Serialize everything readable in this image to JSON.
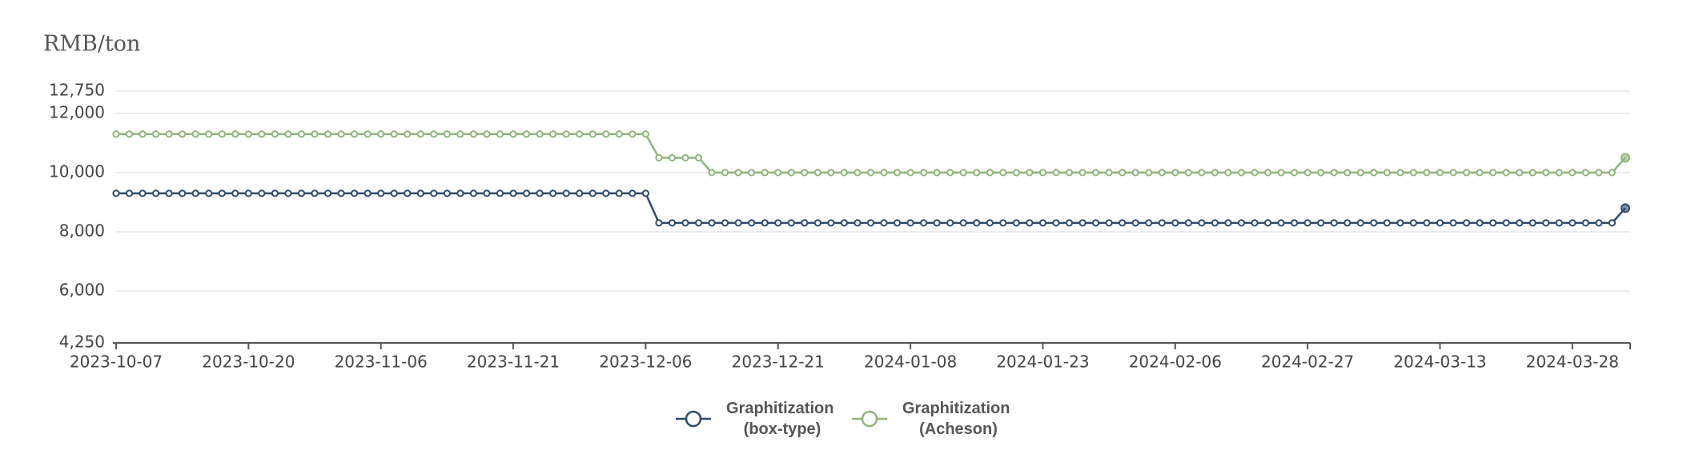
{
  "chart_data": {
    "type": "line",
    "y_axis_label": "RMB/ton",
    "categories": [
      "2023-10-07",
      null,
      null,
      null,
      null,
      null,
      null,
      null,
      null,
      null,
      "2023-10-20",
      null,
      null,
      null,
      null,
      null,
      null,
      null,
      null,
      null,
      "2023-11-06",
      null,
      null,
      null,
      null,
      null,
      null,
      null,
      null,
      null,
      "2023-11-21",
      null,
      null,
      null,
      null,
      null,
      null,
      null,
      null,
      null,
      "2023-12-06",
      null,
      null,
      null,
      null,
      null,
      null,
      null,
      null,
      null,
      "2023-12-21",
      null,
      null,
      null,
      null,
      null,
      null,
      null,
      null,
      null,
      "2024-01-08",
      null,
      null,
      null,
      null,
      null,
      null,
      null,
      null,
      null,
      "2024-01-23",
      null,
      null,
      null,
      null,
      null,
      null,
      null,
      null,
      null,
      "2024-02-06",
      null,
      null,
      null,
      null,
      null,
      null,
      null,
      null,
      null,
      "2024-02-27",
      null,
      null,
      null,
      null,
      null,
      null,
      null,
      null,
      null,
      "2024-03-13",
      null,
      null,
      null,
      null,
      null,
      null,
      null,
      null,
      null,
      "2024-03-28",
      null,
      null,
      null,
      null
    ],
    "series": [
      {
        "name": "Graphitization (box-type)",
        "color": "#2e4a6b",
        "values": [
          9300,
          9300,
          9300,
          9300,
          9300,
          9300,
          9300,
          9300,
          9300,
          9300,
          9300,
          9300,
          9300,
          9300,
          9300,
          9300,
          9300,
          9300,
          9300,
          9300,
          9300,
          9300,
          9300,
          9300,
          9300,
          9300,
          9300,
          9300,
          9300,
          9300,
          9300,
          9300,
          9300,
          9300,
          9300,
          9300,
          9300,
          9300,
          9300,
          9300,
          9300,
          8300,
          8300,
          8300,
          8300,
          8300,
          8300,
          8300,
          8300,
          8300,
          8300,
          8300,
          8300,
          8300,
          8300,
          8300,
          8300,
          8300,
          8300,
          8300,
          8300,
          8300,
          8300,
          8300,
          8300,
          8300,
          8300,
          8300,
          8300,
          8300,
          8300,
          8300,
          8300,
          8300,
          8300,
          8300,
          8300,
          8300,
          8300,
          8300,
          8300,
          8300,
          8300,
          8300,
          8300,
          8300,
          8300,
          8300,
          8300,
          8300,
          8300,
          8300,
          8300,
          8300,
          8300,
          8300,
          8300,
          8300,
          8300,
          8300,
          8300,
          8300,
          8300,
          8300,
          8300,
          8300,
          8300,
          8300,
          8300,
          8300,
          8300,
          8300,
          8300,
          8300,
          8800
        ]
      },
      {
        "name": "Graphitization (Acheson)",
        "color": "#8fb57a",
        "values": [
          11300,
          11300,
          11300,
          11300,
          11300,
          11300,
          11300,
          11300,
          11300,
          11300,
          11300,
          11300,
          11300,
          11300,
          11300,
          11300,
          11300,
          11300,
          11300,
          11300,
          11300,
          11300,
          11300,
          11300,
          11300,
          11300,
          11300,
          11300,
          11300,
          11300,
          11300,
          11300,
          11300,
          11300,
          11300,
          11300,
          11300,
          11300,
          11300,
          11300,
          11300,
          10500,
          10500,
          10500,
          10500,
          10000,
          10000,
          10000,
          10000,
          10000,
          10000,
          10000,
          10000,
          10000,
          10000,
          10000,
          10000,
          10000,
          10000,
          10000,
          10000,
          10000,
          10000,
          10000,
          10000,
          10000,
          10000,
          10000,
          10000,
          10000,
          10000,
          10000,
          10000,
          10000,
          10000,
          10000,
          10000,
          10000,
          10000,
          10000,
          10000,
          10000,
          10000,
          10000,
          10000,
          10000,
          10000,
          10000,
          10000,
          10000,
          10000,
          10000,
          10000,
          10000,
          10000,
          10000,
          10000,
          10000,
          10000,
          10000,
          10000,
          10000,
          10000,
          10000,
          10000,
          10000,
          10000,
          10000,
          10000,
          10000,
          10000,
          10000,
          10000,
          10000,
          10500
        ]
      }
    ],
    "ylim": [
      4250,
      12750
    ],
    "yticks": [
      {
        "value": 4250,
        "label": "4,250"
      },
      {
        "value": 6000,
        "label": "6,000"
      },
      {
        "value": 8000,
        "label": "8,000"
      },
      {
        "value": 10000,
        "label": "10,000"
      },
      {
        "value": 12000,
        "label": "12,000"
      },
      {
        "value": 12750,
        "label": "12,750"
      }
    ],
    "grid": true,
    "legend": "bottom"
  }
}
